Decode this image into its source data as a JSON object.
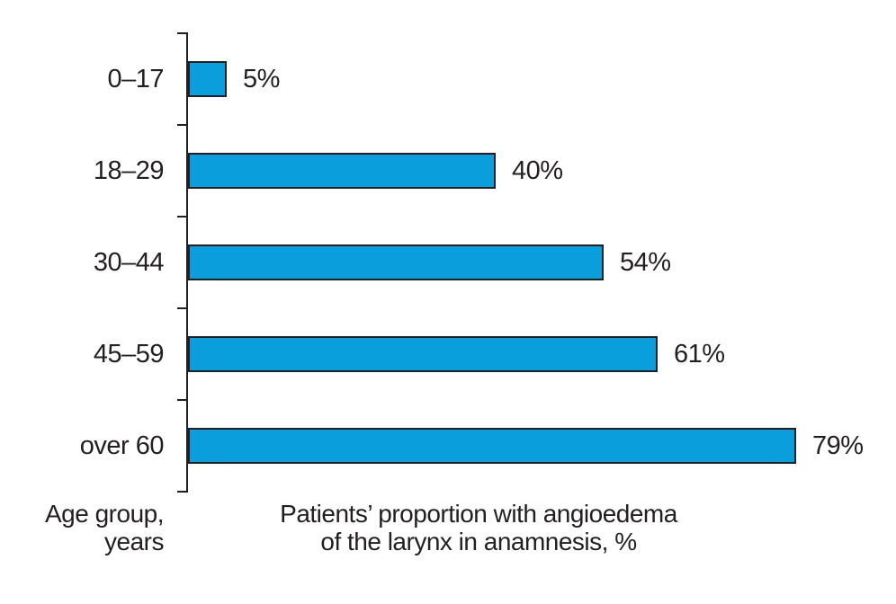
{
  "chart_data": {
    "type": "bar",
    "orientation": "horizontal",
    "categories": [
      "0–17",
      "18–29",
      "30–44",
      "45–59",
      "over 60"
    ],
    "values": [
      5,
      40,
      54,
      61,
      79
    ],
    "value_labels": [
      "5%",
      "40%",
      "54%",
      "61%",
      "79%"
    ],
    "title": "",
    "xlabel": "Patients’ proportion with angioedema of the larynx in anamnesis, %",
    "xlabel_lines": [
      "Patients’ proportion with angioedema",
      "of the larynx in anamnesis, %"
    ],
    "ylabel": "Age group, years",
    "ylabel_lines": [
      "Age group,",
      "years"
    ],
    "xlim": [
      0,
      100
    ],
    "grid": false,
    "legend": false,
    "bar_color": "#0a9edd",
    "bar_border_color": "#231f20",
    "text_color": "#231f20",
    "background_color": "#ffffff"
  }
}
